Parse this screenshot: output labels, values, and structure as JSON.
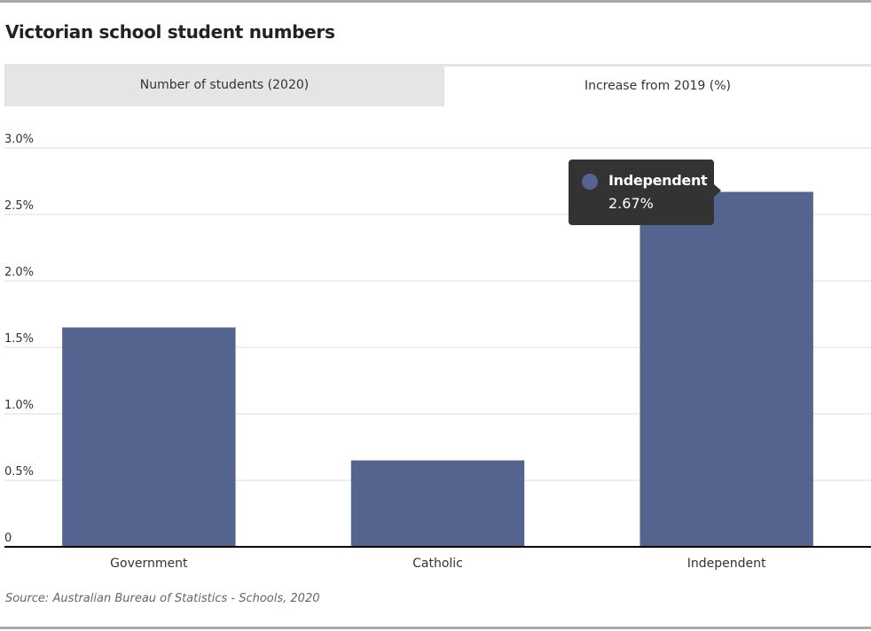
{
  "header": {
    "title": "Victorian school student numbers"
  },
  "tabs": [
    {
      "label": "Number of students (2020)"
    },
    {
      "label": "Increase from 2019 (%)"
    }
  ],
  "colors": {
    "bar": "#55638f",
    "grid": "#dddddd",
    "axis": "#000000",
    "tooltip_bg": "#333333",
    "tab_inactive": "#e5e5e5"
  },
  "chart_data": {
    "type": "bar",
    "title": "",
    "xlabel": "",
    "ylabel": "",
    "categories": [
      "Government",
      "Catholic",
      "Independent"
    ],
    "values": [
      1.65,
      0.65,
      2.67
    ],
    "ylim": [
      0,
      3.0
    ],
    "yticks": [
      {
        "value": 0,
        "label": "0"
      },
      {
        "value": 0.5,
        "label": "0.5%"
      },
      {
        "value": 1.0,
        "label": "1.0%"
      },
      {
        "value": 1.5,
        "label": "1.5%"
      },
      {
        "value": 2.0,
        "label": "2.0%"
      },
      {
        "value": 2.5,
        "label": "2.5%"
      },
      {
        "value": 3.0,
        "label": "3.0%"
      }
    ],
    "grid": true,
    "legend": "none"
  },
  "tooltip": {
    "category": "Independent",
    "value_label": "2.67%"
  },
  "footer": {
    "source": "Source: Australian Bureau of Statistics - Schools, 2020"
  }
}
